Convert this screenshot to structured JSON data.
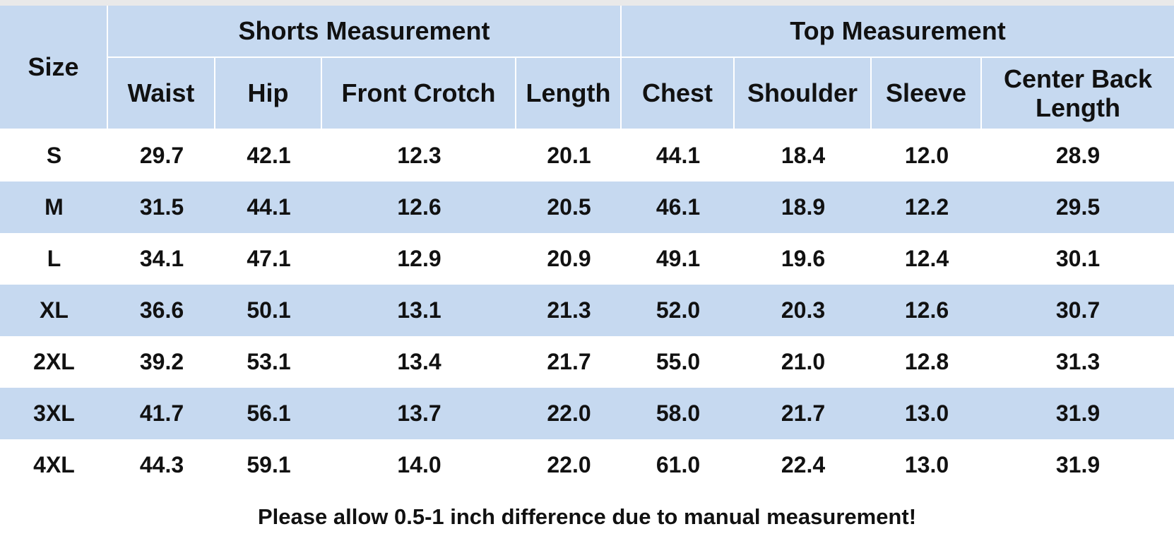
{
  "header": {
    "size": "Size",
    "groups": [
      {
        "label": "Shorts Measurement"
      },
      {
        "label": "Top Measurement"
      }
    ],
    "columns": [
      "Waist",
      "Hip",
      "Front Crotch",
      "Length",
      "Chest",
      "Shoulder",
      "Sleeve",
      "Center Back Length"
    ]
  },
  "table": {
    "rows": [
      [
        "S",
        "29.7",
        "42.1",
        "12.3",
        "20.1",
        "44.1",
        "18.4",
        "12.0",
        "28.9"
      ],
      [
        "M",
        "31.5",
        "44.1",
        "12.6",
        "20.5",
        "46.1",
        "18.9",
        "12.2",
        "29.5"
      ],
      [
        "L",
        "34.1",
        "47.1",
        "12.9",
        "20.9",
        "49.1",
        "19.6",
        "12.4",
        "30.1"
      ],
      [
        "XL",
        "36.6",
        "50.1",
        "13.1",
        "21.3",
        "52.0",
        "20.3",
        "12.6",
        "30.7"
      ],
      [
        "2XL",
        "39.2",
        "53.1",
        "13.4",
        "21.7",
        "55.0",
        "21.0",
        "12.8",
        "31.3"
      ],
      [
        "3XL",
        "41.7",
        "56.1",
        "13.7",
        "22.0",
        "58.0",
        "21.7",
        "13.0",
        "31.9"
      ],
      [
        "4XL",
        "44.3",
        "59.1",
        "14.0",
        "22.0",
        "61.0",
        "22.4",
        "13.0",
        "31.9"
      ]
    ]
  },
  "note": "Please allow 0.5-1 inch difference due to manual measurement!"
}
